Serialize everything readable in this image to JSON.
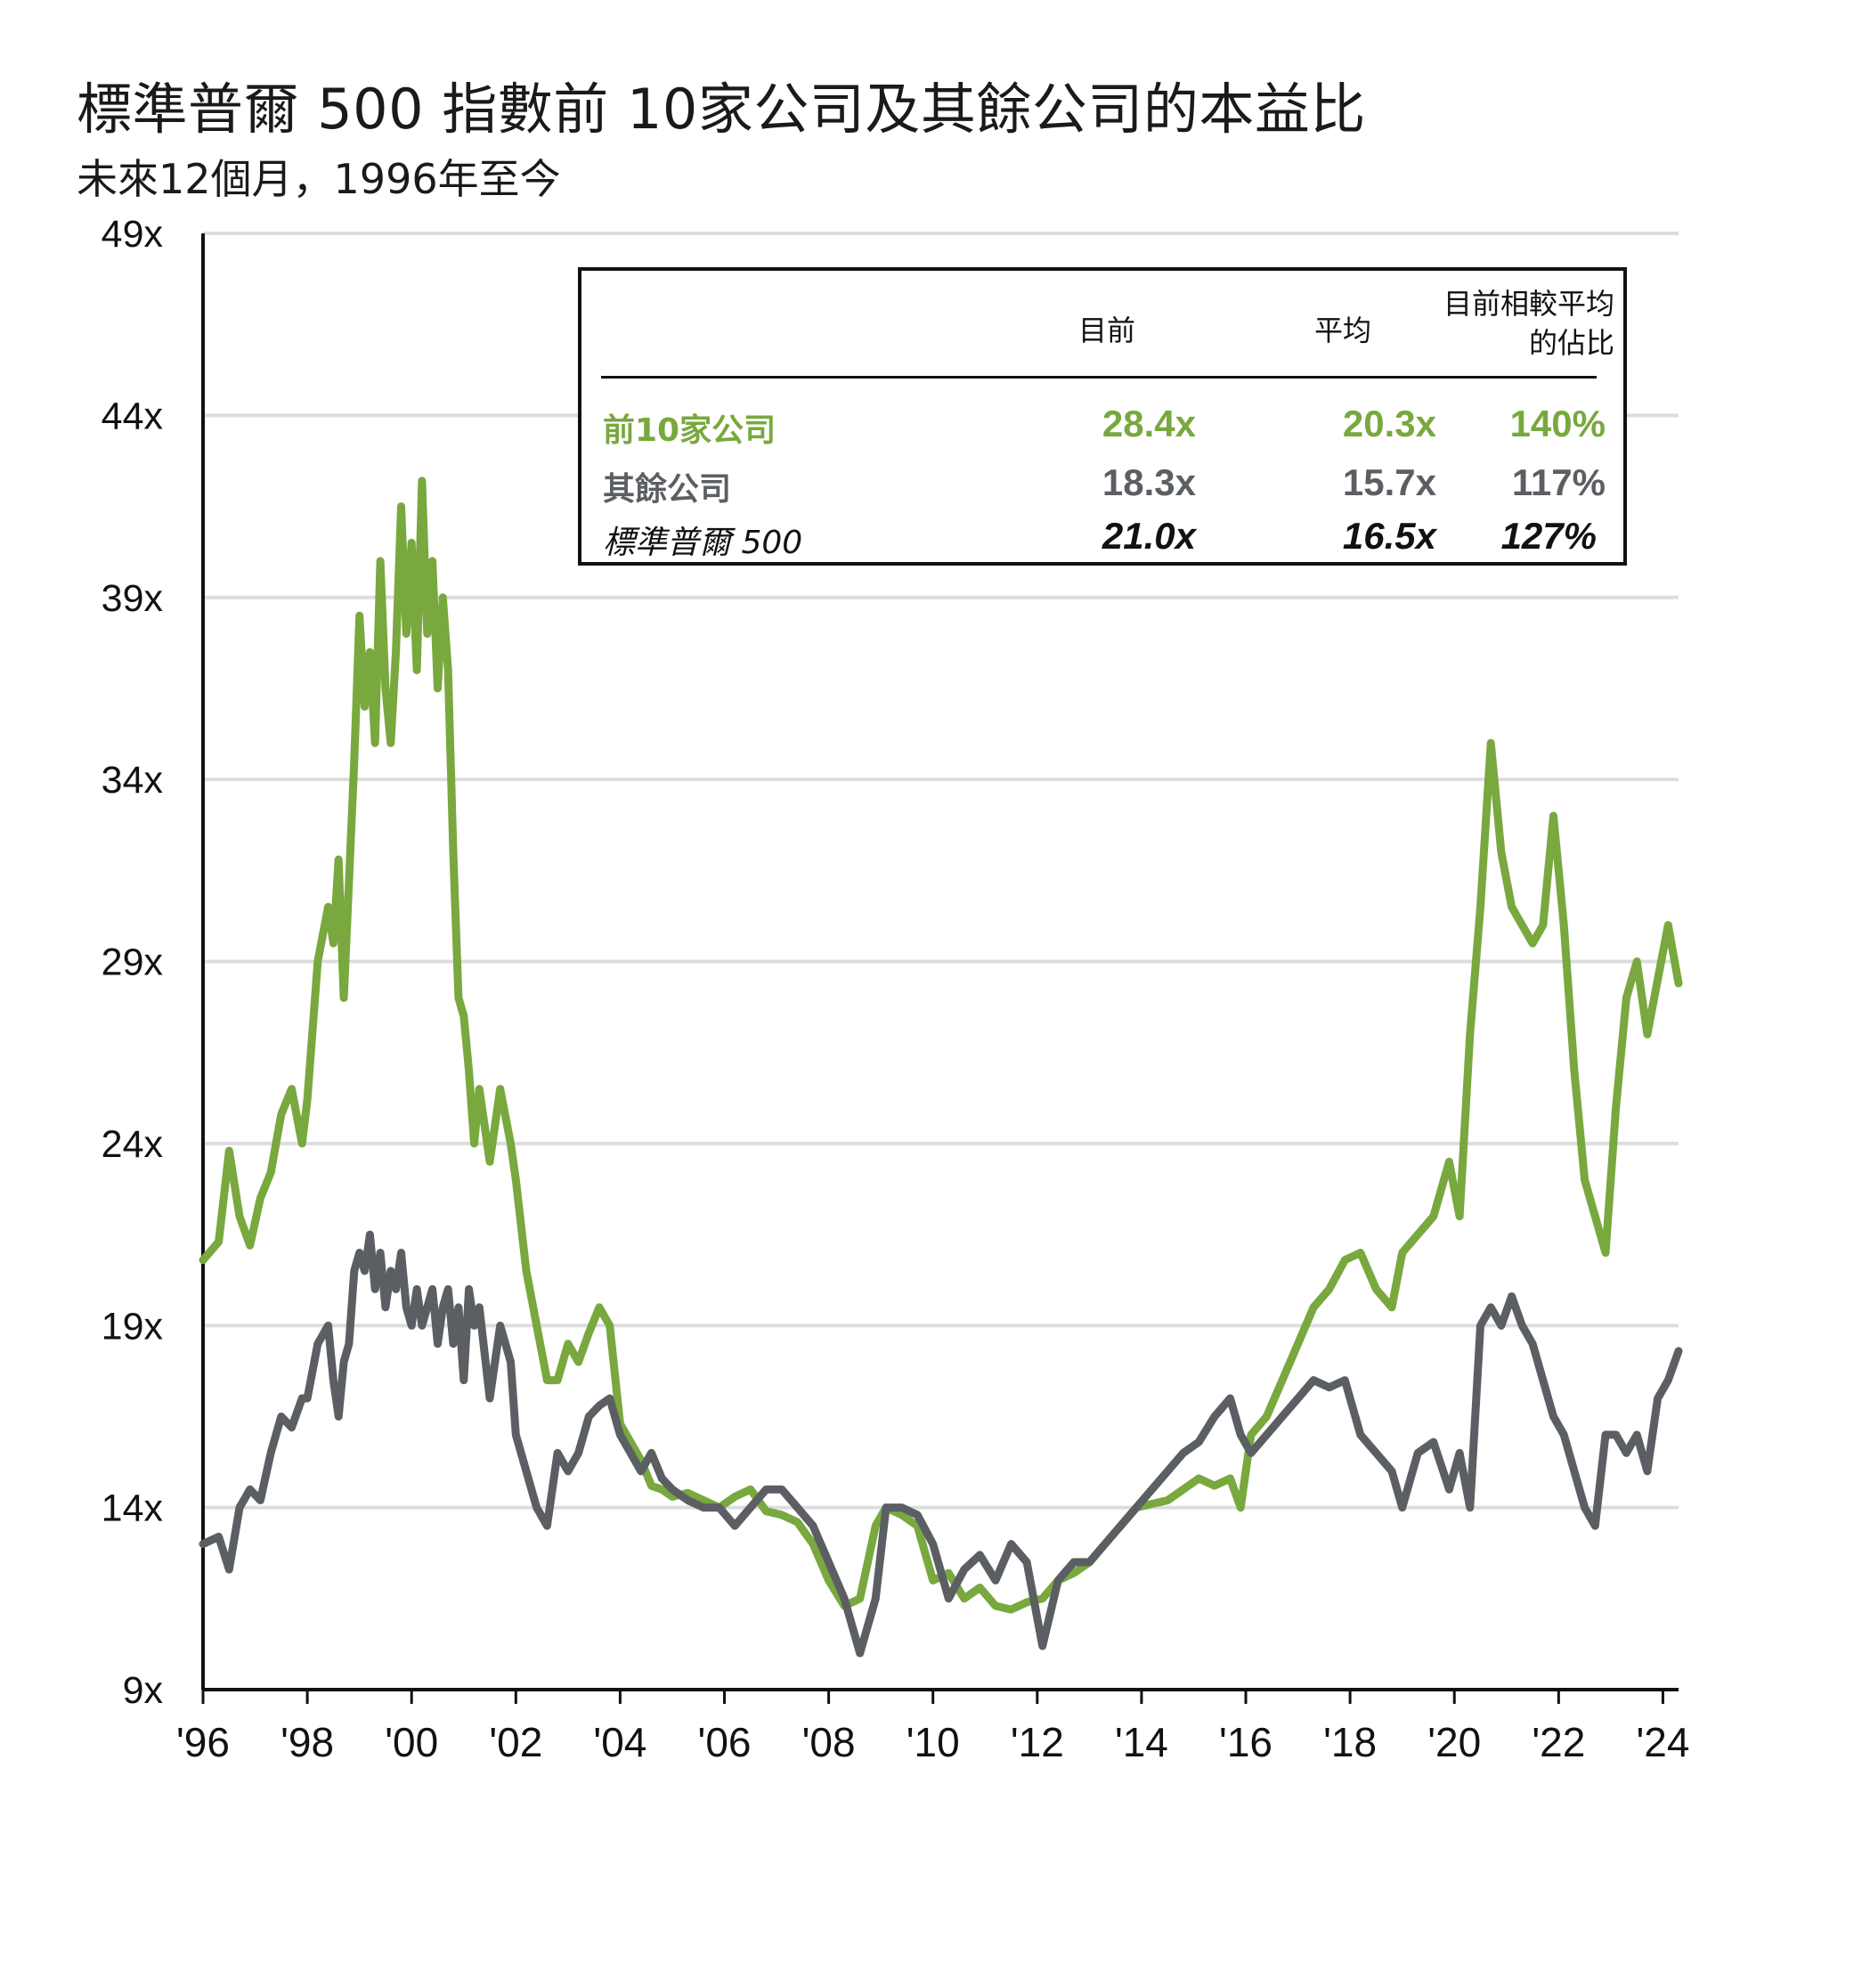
{
  "title": "標準普爾 500 指數前 10家公司及其餘公司的本益比",
  "subtitle": "未來12個月，1996年至今",
  "colors": {
    "top10": "#78a83e",
    "rest": "#5b5f63",
    "axis": "#111111",
    "grid": "#dddddd"
  },
  "table": {
    "headers": [
      "目前",
      "平均",
      "目前相較平均",
      "的佔比"
    ],
    "rows": [
      {
        "label": "前10家公司",
        "current": "28.4x",
        "average": "20.3x",
        "ratio": "140%"
      },
      {
        "label": "其餘公司",
        "current": "18.3x",
        "average": "15.7x",
        "ratio": "117%"
      },
      {
        "label": "標準普爾 500",
        "current": "21.0x",
        "average": "16.5x",
        "ratio": "127%"
      }
    ]
  },
  "chart_data": {
    "type": "line",
    "title": "標準普爾 500 指數前 10家公司及其餘公司的本益比",
    "subtitle": "未來12個月，1996年至今",
    "ylim": [
      9,
      49
    ],
    "yticks": [
      "9x",
      "14x",
      "19x",
      "24x",
      "29x",
      "34x",
      "39x",
      "44x",
      "49x"
    ],
    "xlim": [
      1996,
      2024.3
    ],
    "xticks": [
      "'96",
      "'98",
      "'00",
      "'02",
      "'04",
      "'06",
      "'08",
      "'10",
      "'12",
      "'14",
      "'16",
      "'18",
      "'20",
      "'22",
      "'24"
    ],
    "grid": true,
    "series": [
      {
        "name": "前10家公司",
        "color": "#78a83e",
        "x": [
          1996.0,
          1996.3,
          1996.5,
          1996.7,
          1996.9,
          1997.1,
          1997.3,
          1997.5,
          1997.7,
          1997.9,
          1998.0,
          1998.2,
          1998.4,
          1998.5,
          1998.6,
          1998.7,
          1998.8,
          1998.9,
          1999.0,
          1999.1,
          1999.2,
          1999.3,
          1999.4,
          1999.5,
          1999.6,
          1999.7,
          1999.8,
          1999.9,
          2000.0,
          2000.1,
          2000.2,
          2000.3,
          2000.4,
          2000.5,
          2000.6,
          2000.7,
          2000.8,
          2000.9,
          2001.0,
          2001.1,
          2001.2,
          2001.3,
          2001.5,
          2001.7,
          2001.9,
          2002.0,
          2002.2,
          2002.4,
          2002.6,
          2002.8,
          2003.0,
          2003.2,
          2003.4,
          2003.6,
          2003.8,
          2004.0,
          2004.2,
          2004.4,
          2004.6,
          2004.8,
          2005.0,
          2005.3,
          2005.6,
          2005.9,
          2006.2,
          2006.5,
          2006.8,
          2007.1,
          2007.4,
          2007.7,
          2008.0,
          2008.3,
          2008.6,
          2008.9,
          2009.1,
          2009.4,
          2009.7,
          2010.0,
          2010.3,
          2010.6,
          2010.9,
          2011.2,
          2011.5,
          2011.8,
          2012.1,
          2012.4,
          2012.7,
          2013.0,
          2013.3,
          2013.6,
          2013.9,
          2014.2,
          2014.5,
          2014.8,
          2015.1,
          2015.4,
          2015.7,
          2015.9,
          2016.1,
          2016.4,
          2016.7,
          2017.0,
          2017.3,
          2017.6,
          2017.9,
          2018.2,
          2018.5,
          2018.8,
          2019.0,
          2019.3,
          2019.6,
          2019.9,
          2020.1,
          2020.3,
          2020.5,
          2020.7,
          2020.9,
          2021.1,
          2021.3,
          2021.5,
          2021.7,
          2021.9,
          2022.1,
          2022.3,
          2022.5,
          2022.7,
          2022.9,
          2023.1,
          2023.3,
          2023.5,
          2023.7,
          2023.9,
          2024.1,
          2024.3
        ],
        "values": [
          20.8,
          21.3,
          23.8,
          22.0,
          21.2,
          22.5,
          23.2,
          24.8,
          25.5,
          24.0,
          25.2,
          29.0,
          30.5,
          29.5,
          31.8,
          28.0,
          31.2,
          34.5,
          38.5,
          36.0,
          37.5,
          35.0,
          40.0,
          36.5,
          35.0,
          37.5,
          41.5,
          38.0,
          40.5,
          37.0,
          42.2,
          38.0,
          40.0,
          36.5,
          39.0,
          37.0,
          32.0,
          28.0,
          27.5,
          26.0,
          24.0,
          25.5,
          23.5,
          25.5,
          24.0,
          23.0,
          20.5,
          19.0,
          17.5,
          17.5,
          18.5,
          18.0,
          18.8,
          19.5,
          19.0,
          16.3,
          15.8,
          15.3,
          14.6,
          14.5,
          14.3,
          14.4,
          14.2,
          14.0,
          14.3,
          14.5,
          13.9,
          13.8,
          13.6,
          13.0,
          12.0,
          11.3,
          11.5,
          13.5,
          14.0,
          13.8,
          13.5,
          12.0,
          12.2,
          11.5,
          11.8,
          11.3,
          11.2,
          11.4,
          11.5,
          12.0,
          12.2,
          12.5,
          13.0,
          13.5,
          14.0,
          14.1,
          14.2,
          14.5,
          14.8,
          14.6,
          14.8,
          14.0,
          16.0,
          16.5,
          17.5,
          18.5,
          19.5,
          20.0,
          20.8,
          21.0,
          20.0,
          19.5,
          21.0,
          21.5,
          22.0,
          23.5,
          22.0,
          27.0,
          30.5,
          35.0,
          32.0,
          30.5,
          30.0,
          29.5,
          30.0,
          33.0,
          30.0,
          26.0,
          23.0,
          22.0,
          21.0,
          25.0,
          28.0,
          29.0,
          27.0,
          28.5,
          30.0,
          28.4
        ]
      },
      {
        "name": "其餘公司",
        "color": "#5b5f63",
        "x": [
          1996.0,
          1996.3,
          1996.5,
          1996.7,
          1996.9,
          1997.1,
          1997.3,
          1997.5,
          1997.7,
          1997.9,
          1998.0,
          1998.2,
          1998.4,
          1998.5,
          1998.6,
          1998.7,
          1998.8,
          1998.9,
          1999.0,
          1999.1,
          1999.2,
          1999.3,
          1999.4,
          1999.5,
          1999.6,
          1999.7,
          1999.8,
          1999.9,
          2000.0,
          2000.1,
          2000.2,
          2000.3,
          2000.4,
          2000.5,
          2000.6,
          2000.7,
          2000.8,
          2000.9,
          2001.0,
          2001.1,
          2001.2,
          2001.3,
          2001.5,
          2001.7,
          2001.9,
          2002.0,
          2002.2,
          2002.4,
          2002.6,
          2002.8,
          2003.0,
          2003.2,
          2003.4,
          2003.6,
          2003.8,
          2004.0,
          2004.2,
          2004.4,
          2004.6,
          2004.8,
          2005.0,
          2005.3,
          2005.6,
          2005.9,
          2006.2,
          2006.5,
          2006.8,
          2007.1,
          2007.4,
          2007.7,
          2008.0,
          2008.3,
          2008.6,
          2008.9,
          2009.1,
          2009.4,
          2009.7,
          2010.0,
          2010.3,
          2010.6,
          2010.9,
          2011.2,
          2011.5,
          2011.8,
          2012.1,
          2012.4,
          2012.7,
          2013.0,
          2013.3,
          2013.6,
          2013.9,
          2014.2,
          2014.5,
          2014.8,
          2015.1,
          2015.4,
          2015.7,
          2015.9,
          2016.1,
          2016.4,
          2016.7,
          2017.0,
          2017.3,
          2017.6,
          2017.9,
          2018.2,
          2018.5,
          2018.8,
          2019.0,
          2019.3,
          2019.6,
          2019.9,
          2020.1,
          2020.3,
          2020.5,
          2020.7,
          2020.9,
          2021.1,
          2021.3,
          2021.5,
          2021.7,
          2021.9,
          2022.1,
          2022.3,
          2022.5,
          2022.7,
          2022.9,
          2023.1,
          2023.3,
          2023.5,
          2023.7,
          2023.9,
          2024.1,
          2024.3
        ],
        "values": [
          13.0,
          13.2,
          12.3,
          14.0,
          14.5,
          14.2,
          15.5,
          16.5,
          16.2,
          17.0,
          17.0,
          18.5,
          19.0,
          17.5,
          16.5,
          18.0,
          18.5,
          20.5,
          21.0,
          20.5,
          21.5,
          20.0,
          21.0,
          19.5,
          20.5,
          20.0,
          21.0,
          19.5,
          19.0,
          20.0,
          19.0,
          19.5,
          20.0,
          18.5,
          19.5,
          20.0,
          18.5,
          19.5,
          17.5,
          20.0,
          19.0,
          19.5,
          17.0,
          19.0,
          18.0,
          16.0,
          15.0,
          14.0,
          13.5,
          15.5,
          15.0,
          15.5,
          16.5,
          16.8,
          17.0,
          16.0,
          15.5,
          15.0,
          15.5,
          14.8,
          14.5,
          14.2,
          14.0,
          14.0,
          13.5,
          14.0,
          14.5,
          14.5,
          14.0,
          13.5,
          12.5,
          11.5,
          10.0,
          11.5,
          14.0,
          14.0,
          13.8,
          13.0,
          11.5,
          12.3,
          12.7,
          12.0,
          13.0,
          12.5,
          10.2,
          12.0,
          12.5,
          12.5,
          13.0,
          13.5,
          14.0,
          14.5,
          15.0,
          15.5,
          15.8,
          16.5,
          17.0,
          16.0,
          15.5,
          16.0,
          16.5,
          17.0,
          17.5,
          17.3,
          17.5,
          16.0,
          15.5,
          15.0,
          14.0,
          15.5,
          15.8,
          14.5,
          15.5,
          14.0,
          19.0,
          19.5,
          19.0,
          19.8,
          19.0,
          18.5,
          17.5,
          16.5,
          16.0,
          15.0,
          14.0,
          13.5,
          16.0,
          16.0,
          15.5,
          16.0,
          15.0,
          17.0,
          17.5,
          18.3
        ]
      }
    ]
  }
}
